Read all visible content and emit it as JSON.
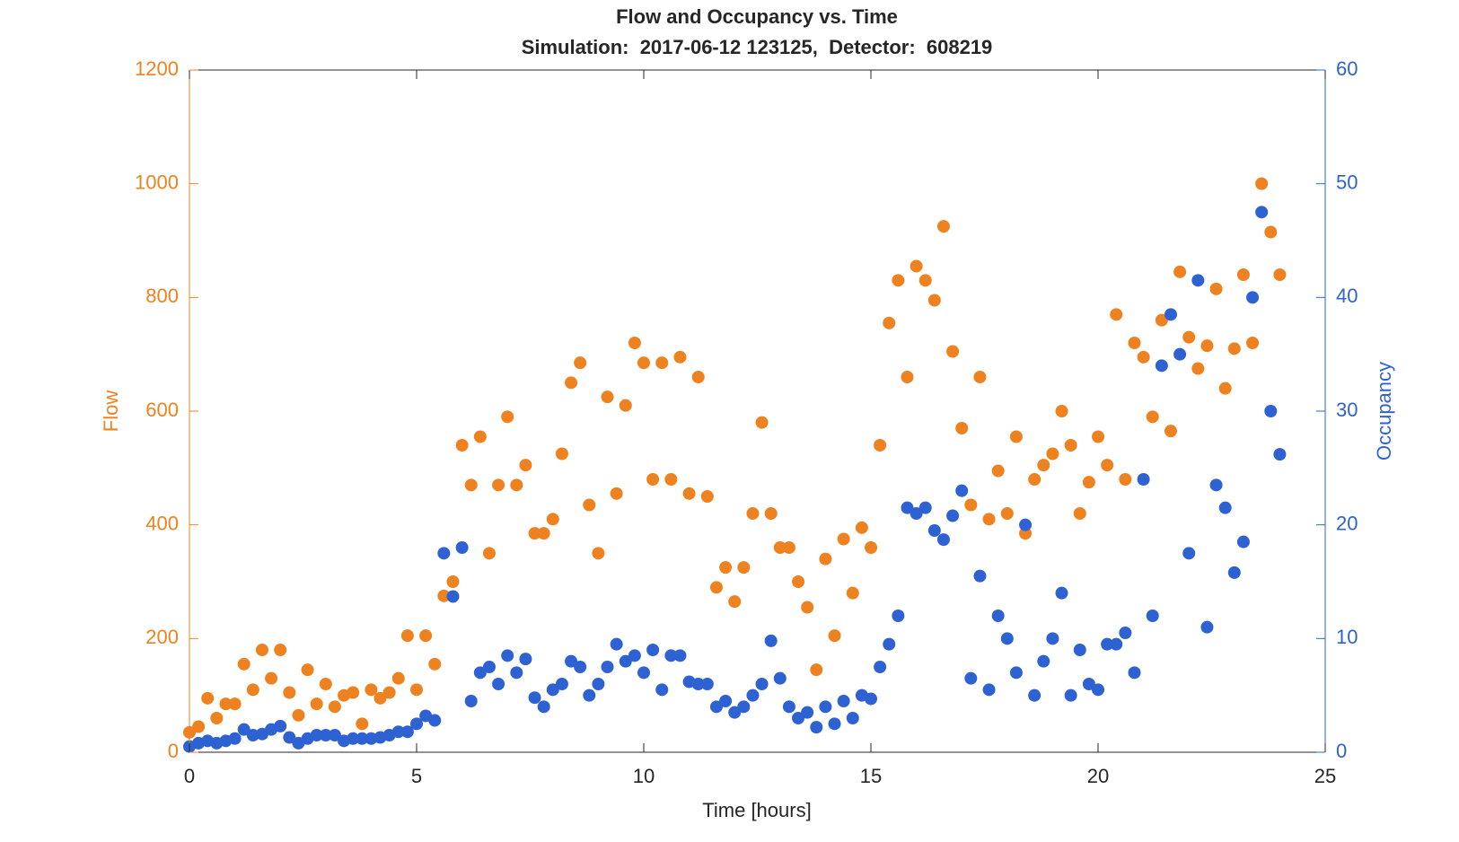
{
  "chart_data": {
    "type": "scatter",
    "title": "Flow and Occupancy vs. Time",
    "subtitle": "Simulation:  2017-06-12 123125,  Detector:  608219",
    "xlabel": "Time [hours]",
    "xlim": [
      0,
      25
    ],
    "xticks": [
      0,
      5,
      10,
      15,
      20,
      25
    ],
    "ylim": [
      0,
      1200
    ],
    "yticks": [
      0,
      200,
      400,
      600,
      800,
      1000,
      1200
    ],
    "y2lim": [
      0,
      60
    ],
    "y2ticks": [
      0,
      10,
      20,
      30,
      40,
      50,
      60
    ],
    "x": [
      0,
      0.2,
      0.4,
      0.6,
      0.8,
      1,
      1.2,
      1.4,
      1.6,
      1.8,
      2,
      2.2,
      2.4,
      2.6,
      2.8,
      3,
      3.2,
      3.4,
      3.6,
      3.8,
      4,
      4.2,
      4.4,
      4.6,
      4.8,
      5,
      5.2,
      5.4,
      5.6,
      5.8,
      6,
      6.2,
      6.4,
      6.6,
      6.8,
      7,
      7.2,
      7.4,
      7.6,
      7.8,
      8,
      8.2,
      8.4,
      8.6,
      8.8,
      9,
      9.2,
      9.4,
      9.6,
      9.8,
      10,
      10.2,
      10.4,
      10.6,
      10.8,
      11,
      11.2,
      11.4,
      11.6,
      11.8,
      12,
      12.2,
      12.4,
      12.6,
      12.8,
      13,
      13.2,
      13.4,
      13.6,
      13.8,
      14,
      14.2,
      14.4,
      14.6,
      14.8,
      15,
      15.2,
      15.4,
      15.6,
      15.8,
      16,
      16.2,
      16.4,
      16.6,
      16.8,
      17,
      17.2,
      17.4,
      17.6,
      17.8,
      18,
      18.2,
      18.4,
      18.6,
      18.8,
      19,
      19.2,
      19.4,
      19.6,
      19.8,
      20,
      20.2,
      20.4,
      20.6,
      20.8,
      21,
      21.2,
      21.4,
      21.6,
      21.8,
      22,
      22.2,
      22.4,
      22.6,
      22.8,
      23,
      23.2,
      23.4,
      23.6,
      23.8,
      24
    ],
    "series": [
      {
        "name": "Flow",
        "color": "#ee8220",
        "values": [
          35,
          45,
          95,
          60,
          85,
          85,
          155,
          110,
          180,
          130,
          180,
          105,
          65,
          145,
          85,
          120,
          80,
          100,
          105,
          50,
          110,
          95,
          105,
          130,
          205,
          110,
          205,
          155,
          275,
          300,
          540,
          470,
          555,
          350,
          470,
          590,
          470,
          505,
          385,
          385,
          410,
          525,
          650,
          685,
          435,
          350,
          625,
          455,
          610,
          720,
          685,
          480,
          685,
          480,
          695,
          455,
          660,
          450,
          290,
          325,
          265,
          325,
          420,
          580,
          420,
          360,
          360,
          300,
          255,
          145,
          340,
          205,
          375,
          280,
          395,
          360,
          540,
          755,
          830,
          660,
          855,
          830,
          795,
          925,
          705,
          570,
          435,
          660,
          410,
          495,
          420,
          555,
          385,
          480,
          505,
          525,
          600,
          540,
          420,
          475,
          555,
          505,
          770,
          480,
          720,
          695,
          590,
          760,
          565,
          845,
          730,
          675,
          715,
          815,
          640,
          710,
          840,
          720,
          1000,
          915,
          840
        ]
      },
      {
        "name": "Occupancy",
        "color": "#2e62d2",
        "axis": "y2",
        "values": [
          0.5,
          0.8,
          1,
          0.8,
          1,
          1.2,
          2,
          1.5,
          1.6,
          2,
          2.3,
          1.3,
          0.8,
          1.2,
          1.5,
          1.5,
          1.5,
          1,
          1.2,
          1.2,
          1.2,
          1.3,
          1.5,
          1.8,
          1.8,
          2.5,
          3.2,
          2.8,
          17.5,
          13.7,
          18,
          4.5,
          7,
          7.5,
          6,
          8.5,
          7,
          8.2,
          4.8,
          4,
          5.5,
          6,
          8,
          7.5,
          5,
          6,
          7.5,
          9.5,
          8,
          8.5,
          7,
          9,
          5.5,
          8.5,
          8.5,
          6.2,
          6,
          6,
          4,
          4.5,
          3.5,
          4,
          5,
          6,
          9.8,
          6.5,
          4,
          3,
          3.5,
          2.2,
          4,
          2.5,
          4.5,
          3,
          5,
          4.7,
          7.5,
          9.5,
          12,
          21.5,
          21,
          21.5,
          19.5,
          18.7,
          20.8,
          23,
          6.5,
          15.5,
          5.5,
          12,
          10,
          7,
          20,
          5,
          8,
          10,
          14,
          5,
          9,
          6,
          5.5,
          9.5,
          9.5,
          10.5,
          7,
          24,
          12,
          34,
          38.5,
          35,
          17.5,
          41.5,
          11,
          23.5,
          21.5,
          15.8,
          18.5,
          40,
          47.5,
          30,
          26.2
        ]
      }
    ]
  }
}
